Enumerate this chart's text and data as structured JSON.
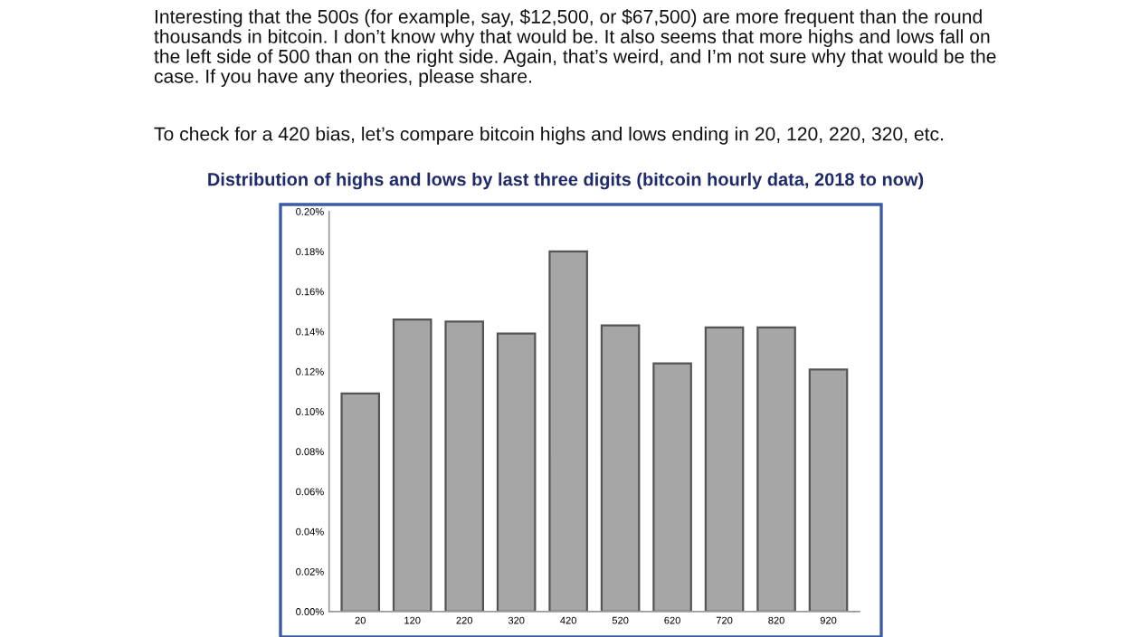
{
  "chart_data": {
    "type": "bar",
    "title": "Distribution of highs and lows by last three digits (bitcoin hourly data, 2018 to now)",
    "annotations": [
      "Interesting that the 500s (for example, say, $12,500, or $67,500) are more frequent than the round\nthousands in bitcoin. I don’t know why that would be. It also seems that more highs and lows fall on\nthe left side of 500 than on the right side. Again, that’s weird, and I’m not sure why that would be the\ncase. If you have any theories, please share.",
      "To check for a 420 bias, let’s compare bitcoin highs and lows ending in 20, 120, 220, 320, etc."
    ],
    "categories": [
      "20",
      "120",
      "220",
      "320",
      "420",
      "520",
      "620",
      "720",
      "820",
      "920"
    ],
    "values": [
      0.109,
      0.146,
      0.145,
      0.139,
      0.18,
      0.143,
      0.124,
      0.142,
      0.142,
      0.121
    ],
    "color": "#a6a6a6",
    "ylim": [
      0,
      0.2
    ],
    "yticks": [
      {
        "value": 0,
        "label": "0.00%"
      },
      {
        "value": 0.02,
        "label": "0.02%"
      },
      {
        "value": 0.04,
        "label": "0.04%"
      },
      {
        "value": 0.06,
        "label": "0.06%"
      },
      {
        "value": 0.08,
        "label": "0.08%"
      },
      {
        "value": 0.1,
        "label": "0.10%"
      },
      {
        "value": 0.12,
        "label": "0.12%"
      },
      {
        "value": 0.14,
        "label": "0.14%"
      },
      {
        "value": 0.16,
        "label": "0.16%"
      },
      {
        "value": 0.18,
        "label": "0.18%"
      },
      {
        "value": 0.2,
        "label": "0.20%"
      }
    ],
    "grid": false
  }
}
